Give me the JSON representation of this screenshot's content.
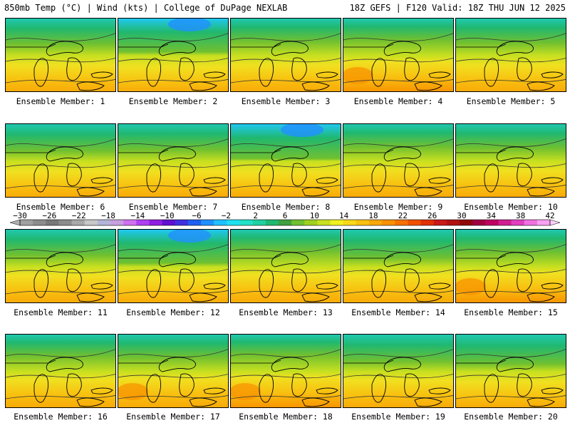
{
  "header": {
    "title_left": "850mb Temp (°C) | Wind (kts) | College of DuPage NEXLAB",
    "title_right": "18Z GEFS | F120 Valid: 18Z THU JUN 12 2025"
  },
  "panels": [
    {
      "label": "Ensemble Member: 1",
      "cool": 0.55,
      "warm": 0.35
    },
    {
      "label": "Ensemble Member: 2",
      "cool": 0.85,
      "warm": 0.2
    },
    {
      "label": "Ensemble Member: 3",
      "cool": 0.45,
      "warm": 0.35
    },
    {
      "label": "Ensemble Member: 4",
      "cool": 0.4,
      "warm": 0.55
    },
    {
      "label": "Ensemble Member: 5",
      "cool": 0.5,
      "warm": 0.35
    },
    {
      "label": "Ensemble Member: 6",
      "cool": 0.6,
      "warm": 0.3
    },
    {
      "label": "Ensemble Member: 7",
      "cool": 0.55,
      "warm": 0.3
    },
    {
      "label": "Ensemble Member: 8",
      "cool": 0.9,
      "warm": 0.25
    },
    {
      "label": "Ensemble Member: 9",
      "cool": 0.45,
      "warm": 0.4
    },
    {
      "label": "Ensemble Member: 10",
      "cool": 0.5,
      "warm": 0.35
    },
    {
      "label": "Ensemble Member: 11",
      "cool": 0.55,
      "warm": 0.4
    },
    {
      "label": "Ensemble Member: 12",
      "cool": 0.85,
      "warm": 0.25
    },
    {
      "label": "Ensemble Member: 13",
      "cool": 0.4,
      "warm": 0.45
    },
    {
      "label": "Ensemble Member: 14",
      "cool": 0.65,
      "warm": 0.4
    },
    {
      "label": "Ensemble Member: 15",
      "cool": 0.45,
      "warm": 0.55
    },
    {
      "label": "Ensemble Member: 16",
      "cool": 0.4,
      "warm": 0.45
    },
    {
      "label": "Ensemble Member: 17",
      "cool": 0.45,
      "warm": 0.5
    },
    {
      "label": "Ensemble Member: 18",
      "cool": 0.35,
      "warm": 0.6
    },
    {
      "label": "Ensemble Member: 19",
      "cool": 0.6,
      "warm": 0.4
    },
    {
      "label": "Ensemble Member: 20",
      "cool": 0.7,
      "warm": 0.3
    }
  ],
  "colorbar": {
    "labels": [
      "−30",
      "−26",
      "−22",
      "−18",
      "−14",
      "−10",
      "−6",
      "−2",
      "2",
      "6",
      "10",
      "14",
      "18",
      "22",
      "26",
      "30",
      "34",
      "38",
      "42"
    ],
    "colors": [
      "#a0a0a0",
      "#8c8c8c",
      "#787878",
      "#8c8c8c",
      "#a8a8a8",
      "#c8c8c8",
      "#b4b4d8",
      "#c8a0e0",
      "#d070f0",
      "#b040f0",
      "#9020e0",
      "#6010d0",
      "#4030e0",
      "#2060f0",
      "#2090ff",
      "#20c0ff",
      "#20e0f0",
      "#20e0c8",
      "#20d0a0",
      "#20b870",
      "#40a040",
      "#70c030",
      "#a0d020",
      "#c8e020",
      "#f0f020",
      "#f8d818",
      "#f8c010",
      "#f8a808",
      "#f89000",
      "#f87000",
      "#f05000",
      "#e03000",
      "#c81818",
      "#b01010",
      "#900808",
      "#a00040",
      "#c00060",
      "#d02090",
      "#e040c0",
      "#f070e0",
      "#f8a0f0"
    ]
  }
}
